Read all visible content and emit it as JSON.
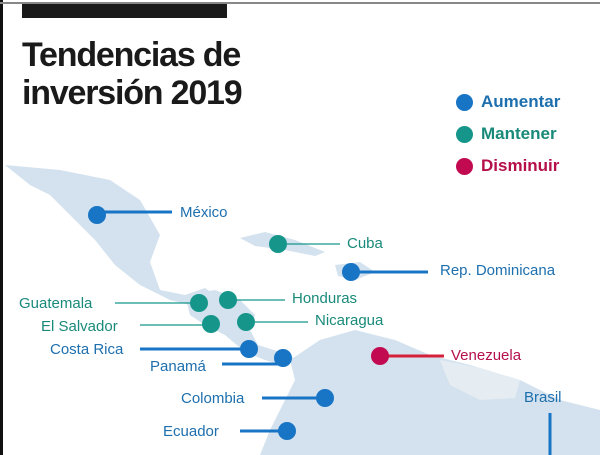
{
  "title_line1": "Tendencias de",
  "title_line2": "inversión 2019",
  "colors": {
    "aumentar": "#1874c4",
    "mantener": "#16968a",
    "disminuir": "#c20a50",
    "land": "#d3e2ee",
    "land_light": "#e6edf2"
  },
  "legend": [
    {
      "label": "Aumentar",
      "color": "#1874c4"
    },
    {
      "label": "Mantener",
      "color": "#16968a"
    },
    {
      "label": "Disminuir",
      "color": "#c20a50"
    }
  ],
  "countries": {
    "mexico": {
      "label": "México",
      "trend": "Aumentar"
    },
    "cuba": {
      "label": "Cuba",
      "trend": "Mantener"
    },
    "rep_dominicana": {
      "label": "Rep. Dominicana",
      "trend": "Aumentar"
    },
    "guatemala": {
      "label": "Guatemala",
      "trend": "Mantener"
    },
    "honduras": {
      "label": "Honduras",
      "trend": "Mantener"
    },
    "el_salvador": {
      "label": "El Salvador",
      "trend": "Mantener"
    },
    "nicaragua": {
      "label": "Nicaragua",
      "trend": "Mantener"
    },
    "costa_rica": {
      "label": "Costa Rica",
      "trend": "Aumentar"
    },
    "panama": {
      "label": "Panamá",
      "trend": "Aumentar"
    },
    "venezuela": {
      "label": "Venezuela",
      "trend": "Disminuir"
    },
    "colombia": {
      "label": "Colombia",
      "trend": "Aumentar"
    },
    "ecuador": {
      "label": "Ecuador",
      "trend": "Aumentar"
    },
    "brasil": {
      "label": "Brasil",
      "trend": "Aumentar"
    }
  }
}
